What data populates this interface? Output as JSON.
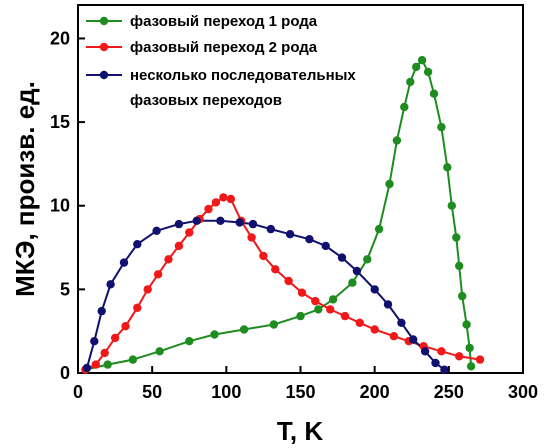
{
  "chart_data": {
    "type": "line",
    "xlabel": "T, K",
    "ylabel": "МКЭ, произв. ед.",
    "xlim": [
      0,
      300
    ],
    "ylim": [
      0,
      22
    ],
    "xticks": [
      0,
      50,
      100,
      150,
      200,
      250,
      300
    ],
    "yticks": [
      0,
      5,
      10,
      15,
      20
    ],
    "grid": false,
    "legend_position": "top-left",
    "series": [
      {
        "name": "фазовый переход 1 рода",
        "color": "#1f8c1f",
        "points": [
          [
            5,
            0.2
          ],
          [
            20,
            0.5
          ],
          [
            37,
            0.8
          ],
          [
            55,
            1.3
          ],
          [
            75,
            1.9
          ],
          [
            92,
            2.3
          ],
          [
            112,
            2.6
          ],
          [
            132,
            2.9
          ],
          [
            150,
            3.4
          ],
          [
            162,
            3.8
          ],
          [
            172,
            4.4
          ],
          [
            185,
            5.4
          ],
          [
            195,
            6.8
          ],
          [
            203,
            8.6
          ],
          [
            210,
            11.3
          ],
          [
            215,
            13.9
          ],
          [
            220,
            15.9
          ],
          [
            224,
            17.4
          ],
          [
            228,
            18.3
          ],
          [
            232,
            18.7
          ],
          [
            236,
            18.0
          ],
          [
            240,
            16.7
          ],
          [
            245,
            14.7
          ],
          [
            249,
            12.3
          ],
          [
            252,
            10.0
          ],
          [
            255,
            8.1
          ],
          [
            257,
            6.4
          ],
          [
            259,
            4.6
          ],
          [
            262,
            2.9
          ],
          [
            264,
            1.5
          ],
          [
            265,
            0.4
          ]
        ]
      },
      {
        "name": "фазовый переход 2 рода",
        "color": "#f01818",
        "points": [
          [
            5,
            0.2
          ],
          [
            12,
            0.5
          ],
          [
            18,
            1.2
          ],
          [
            25,
            2.1
          ],
          [
            32,
            2.8
          ],
          [
            40,
            3.9
          ],
          [
            47,
            5.0
          ],
          [
            54,
            5.9
          ],
          [
            61,
            6.8
          ],
          [
            68,
            7.6
          ],
          [
            75,
            8.4
          ],
          [
            82,
            9.2
          ],
          [
            88,
            9.8
          ],
          [
            93,
            10.2
          ],
          [
            98,
            10.5
          ],
          [
            103,
            10.4
          ],
          [
            110,
            9.1
          ],
          [
            117,
            8.1
          ],
          [
            125,
            7.0
          ],
          [
            133,
            6.2
          ],
          [
            142,
            5.5
          ],
          [
            151,
            4.8
          ],
          [
            160,
            4.3
          ],
          [
            170,
            3.8
          ],
          [
            180,
            3.4
          ],
          [
            190,
            3.0
          ],
          [
            200,
            2.6
          ],
          [
            213,
            2.2
          ],
          [
            223,
            1.9
          ],
          [
            233,
            1.6
          ],
          [
            245,
            1.3
          ],
          [
            257,
            1.0
          ],
          [
            271,
            0.8
          ]
        ]
      },
      {
        "name": "несколько последовательных фазовых переходов",
        "color": "#10106e",
        "points": [
          [
            6,
            0.3
          ],
          [
            11,
            1.9
          ],
          [
            16,
            3.7
          ],
          [
            22,
            5.3
          ],
          [
            31,
            6.6
          ],
          [
            40,
            7.7
          ],
          [
            53,
            8.5
          ],
          [
            68,
            8.9
          ],
          [
            80,
            9.1
          ],
          [
            96,
            9.1
          ],
          [
            109,
            9.0
          ],
          [
            118,
            8.9
          ],
          [
            130,
            8.6
          ],
          [
            143,
            8.3
          ],
          [
            156,
            8.0
          ],
          [
            167,
            7.6
          ],
          [
            178,
            6.9
          ],
          [
            188,
            6.1
          ],
          [
            200,
            5.0
          ],
          [
            209,
            4.1
          ],
          [
            218,
            3.0
          ],
          [
            226,
            2.0
          ],
          [
            234,
            1.3
          ],
          [
            241,
            0.6
          ],
          [
            247,
            0.2
          ]
        ]
      }
    ]
  }
}
